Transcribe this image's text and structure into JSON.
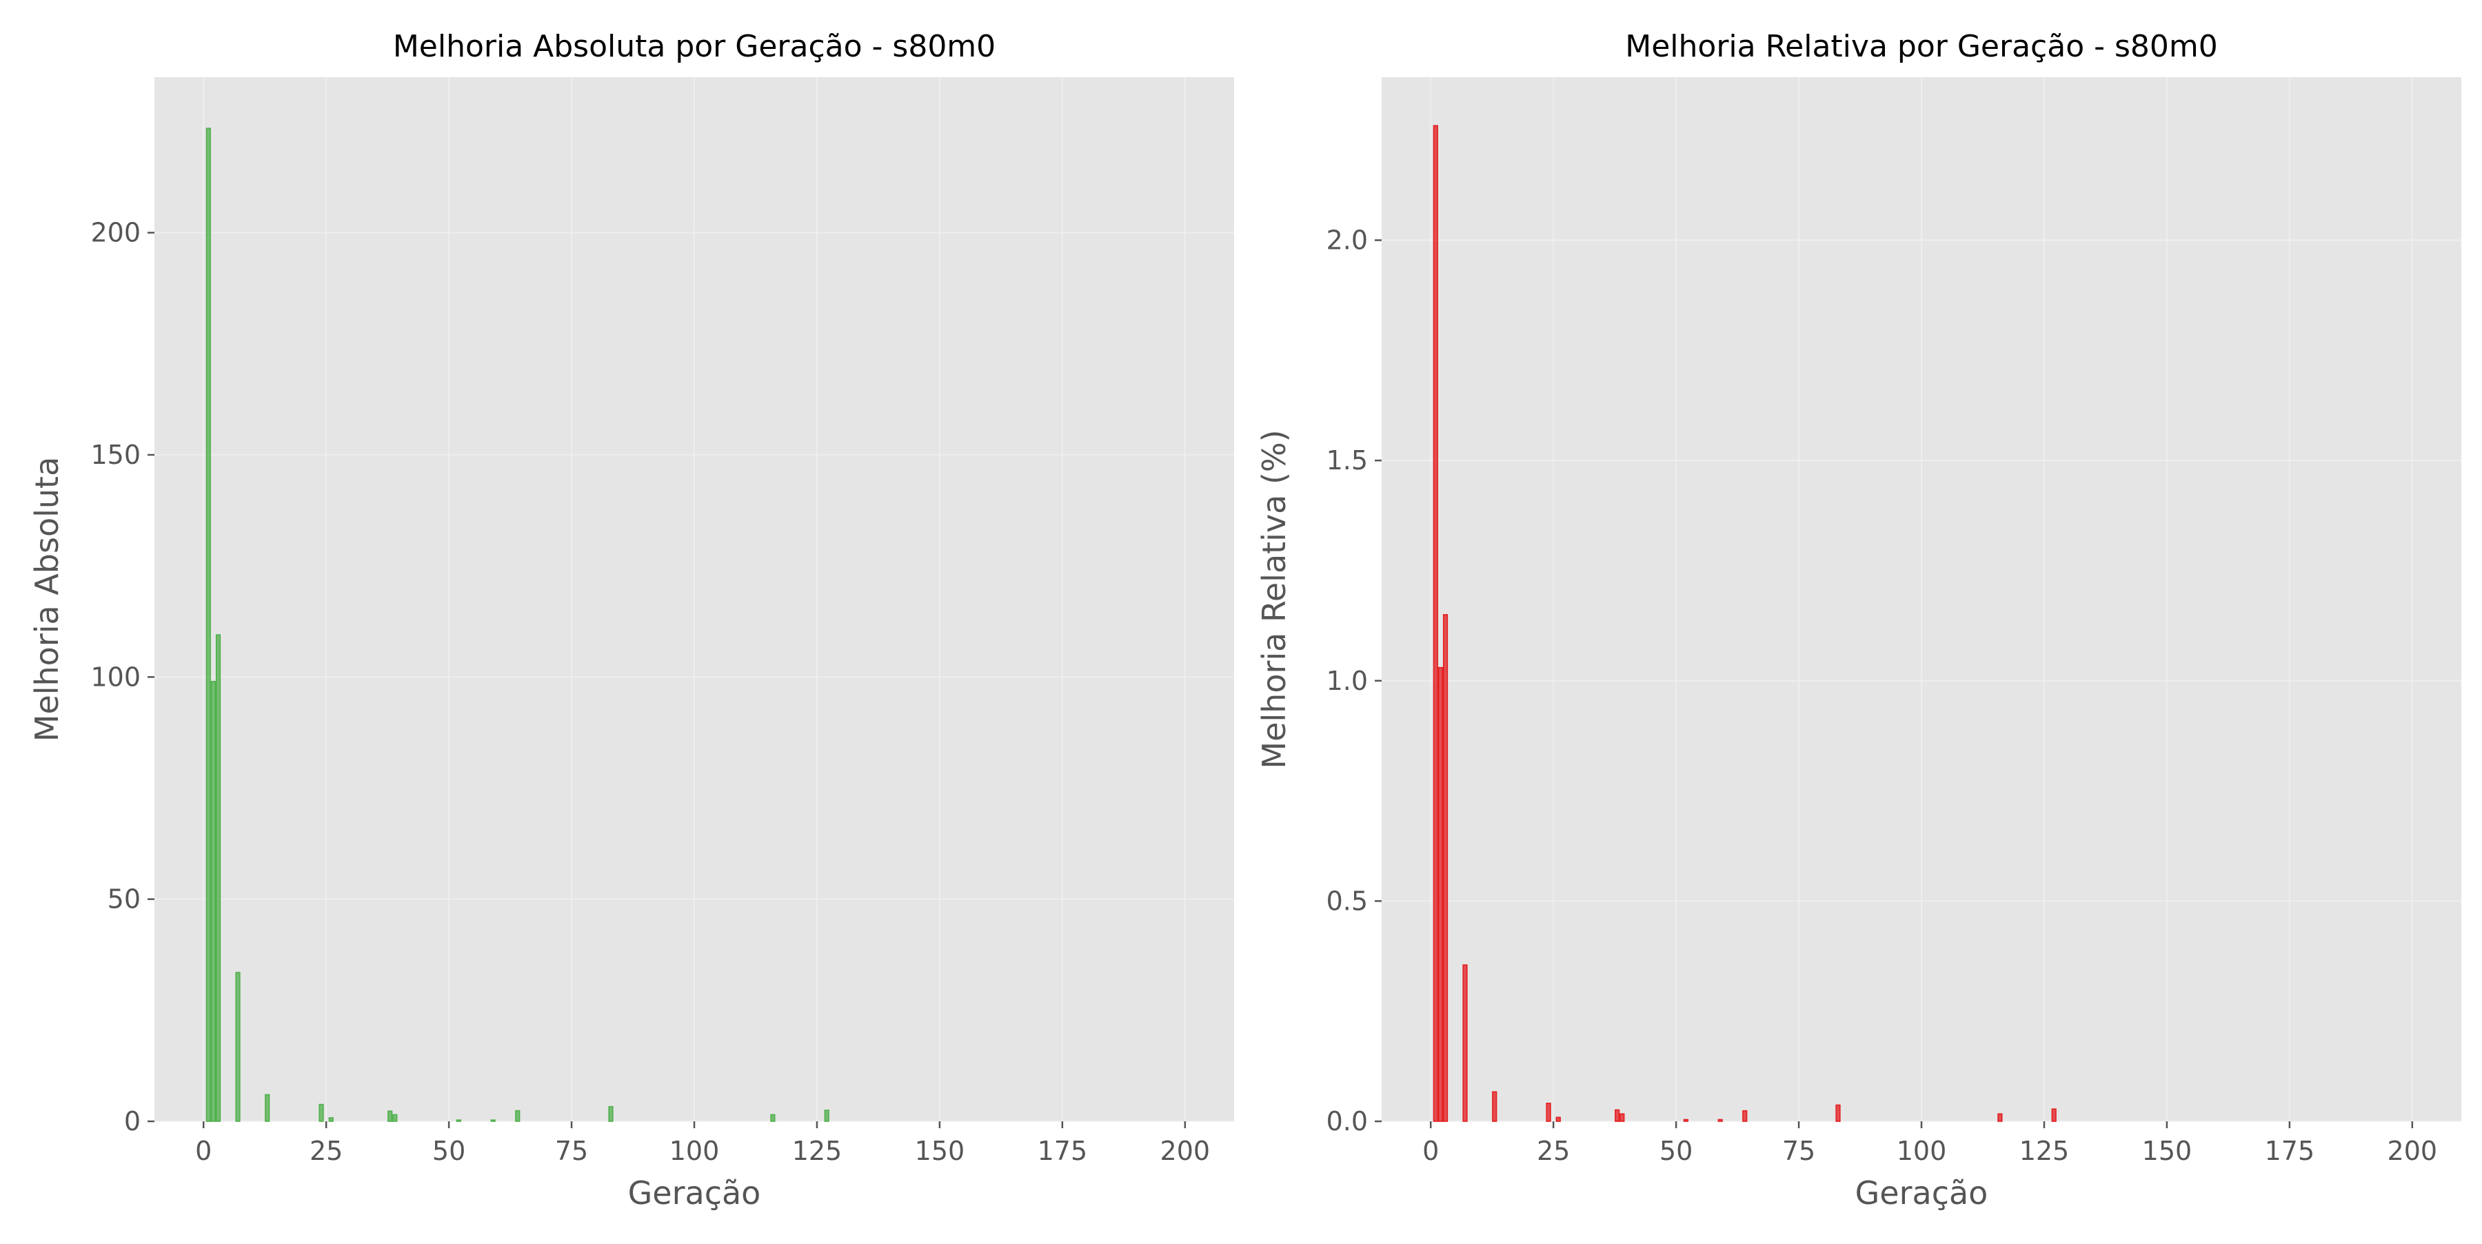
{
  "chart_data": [
    {
      "type": "bar",
      "title": "Melhoria Absoluta por Geração - s80m0",
      "xlabel": "Geração",
      "ylabel": "Melhoria Absoluta",
      "xlim": [
        -10,
        210
      ],
      "ylim": [
        0,
        235
      ],
      "xticks": [
        0,
        25,
        50,
        75,
        100,
        125,
        150,
        175,
        200
      ],
      "yticks": [
        0,
        50,
        100,
        150,
        200
      ],
      "xtick_labels": [
        "0",
        "25",
        "50",
        "75",
        "100",
        "125",
        "150",
        "175",
        "200"
      ],
      "ytick_labels": [
        "0",
        "50",
        "100",
        "150",
        "200"
      ],
      "grid": true,
      "color": "#4daf4a",
      "x": [
        1,
        2,
        3,
        7,
        13,
        24,
        26,
        38,
        39,
        52,
        59,
        64,
        83,
        116,
        127
      ],
      "values": [
        223.5,
        99.0,
        109.5,
        33.5,
        6.0,
        3.8,
        0.8,
        2.3,
        1.5,
        0.3,
        0.3,
        2.4,
        3.3,
        1.5,
        2.5
      ]
    },
    {
      "type": "bar",
      "title": "Melhoria Relativa por Geração - s80m0",
      "xlabel": "Geração",
      "ylabel": "Melhoria Relativa (%)",
      "xlim": [
        -10,
        210
      ],
      "ylim": [
        0,
        2.37
      ],
      "xticks": [
        0,
        25,
        50,
        75,
        100,
        125,
        150,
        175,
        200
      ],
      "yticks": [
        0,
        0.5,
        1.0,
        1.5,
        2.0
      ],
      "xtick_labels": [
        "0",
        "25",
        "50",
        "75",
        "100",
        "125",
        "150",
        "175",
        "200"
      ],
      "ytick_labels": [
        "0.0",
        "0.5",
        "1.0",
        "1.5",
        "2.0"
      ],
      "grid": true,
      "color": "#e41a1c",
      "x": [
        1,
        2,
        3,
        7,
        13,
        24,
        26,
        38,
        39,
        52,
        59,
        64,
        83,
        116,
        127
      ],
      "values": [
        2.26,
        1.03,
        1.15,
        0.355,
        0.067,
        0.041,
        0.009,
        0.026,
        0.017,
        0.004,
        0.004,
        0.024,
        0.037,
        0.017,
        0.028
      ]
    }
  ]
}
